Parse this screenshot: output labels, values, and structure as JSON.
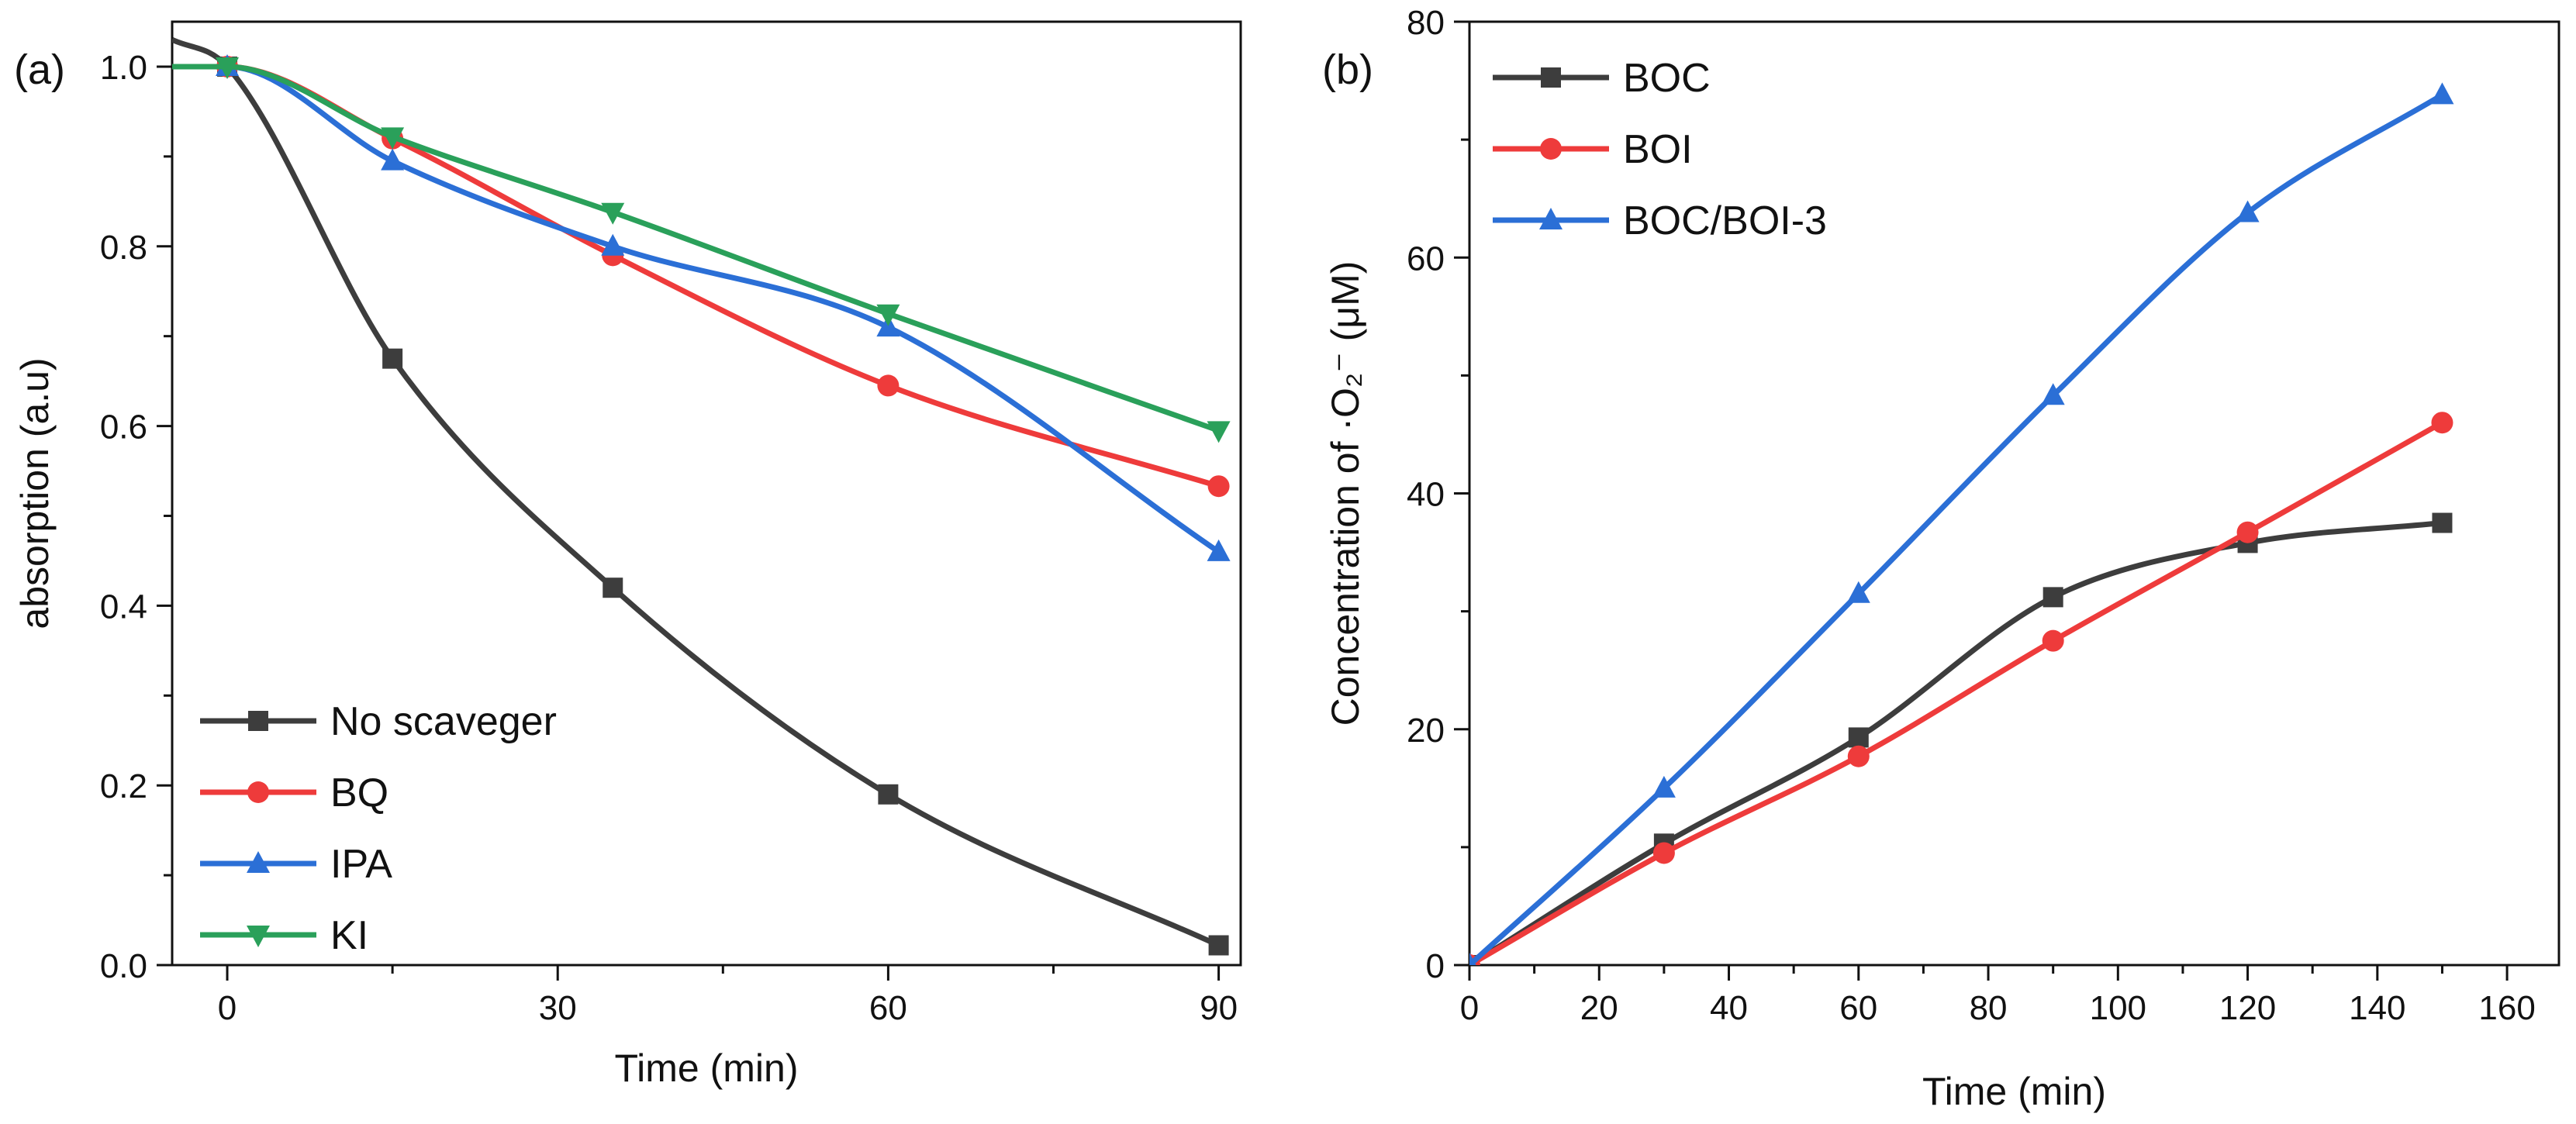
{
  "chart_data": [
    {
      "panel_label": "(a)",
      "type": "line",
      "xlabel": "Time (min)",
      "ylabel": "absorption (a.u)",
      "xlim": [
        -5,
        92
      ],
      "ylim": [
        0,
        1.05
      ],
      "xticks": [
        0,
        30,
        60,
        90
      ],
      "yticks": [
        0.0,
        0.2,
        0.4,
        0.6,
        0.8,
        1.0
      ],
      "xtick_labels": [
        "0",
        "30",
        "60",
        "90"
      ],
      "ytick_labels": [
        "0.0",
        "0.2",
        "0.4",
        "0.6",
        "0.8",
        "1.0"
      ],
      "grid": false,
      "legend_position": "bottom-left",
      "series": [
        {
          "name": "No scaveger",
          "color": "#3d3d3d",
          "marker": "square",
          "x": [
            -5,
            0,
            15,
            35,
            60,
            90
          ],
          "y": [
            1.03,
            1.0,
            0.675,
            0.42,
            0.19,
            0.022
          ],
          "marker_x": [
            0,
            15,
            35,
            60,
            90
          ]
        },
        {
          "name": "BQ",
          "color": "#ee3b3b",
          "marker": "circle",
          "x": [
            -5,
            0,
            15,
            35,
            60,
            90
          ],
          "y": [
            1.0,
            1.0,
            0.92,
            0.79,
            0.645,
            0.533
          ],
          "marker_x": [
            0,
            15,
            35,
            60,
            90
          ]
        },
        {
          "name": "IPA",
          "color": "#2b6fd6",
          "marker": "triangle-up",
          "x": [
            -5,
            0,
            15,
            35,
            60,
            90
          ],
          "y": [
            1.0,
            1.0,
            0.895,
            0.8,
            0.71,
            0.46
          ],
          "marker_x": [
            0,
            15,
            35,
            60,
            90
          ]
        },
        {
          "name": "KI",
          "color": "#2aa05a",
          "marker": "triangle-down",
          "x": [
            -5,
            0,
            15,
            35,
            60,
            90
          ],
          "y": [
            1.0,
            1.0,
            0.922,
            0.838,
            0.725,
            0.595
          ],
          "marker_x": [
            0,
            15,
            35,
            60,
            90
          ]
        }
      ]
    },
    {
      "panel_label": "(b)",
      "type": "line",
      "xlabel": "Time (min)",
      "ylabel": "Concentration of ·O₂⁻ (μM)",
      "xlim": [
        0,
        168
      ],
      "ylim": [
        0,
        80
      ],
      "xticks": [
        0,
        20,
        40,
        60,
        80,
        100,
        120,
        140,
        160
      ],
      "yticks": [
        0,
        20,
        40,
        60,
        80
      ],
      "xtick_labels": [
        "0",
        "20",
        "40",
        "60",
        "80",
        "100",
        "120",
        "140",
        "160"
      ],
      "ytick_labels": [
        "0",
        "20",
        "40",
        "60",
        "80"
      ],
      "grid": false,
      "legend_position": "top-left",
      "series": [
        {
          "name": "BOC",
          "color": "#3d3d3d",
          "marker": "square",
          "x": [
            0,
            30,
            60,
            90,
            120,
            150
          ],
          "y": [
            0,
            10.3,
            19.3,
            31.2,
            35.8,
            37.5
          ],
          "marker_x": [
            0,
            30,
            60,
            90,
            120,
            150
          ]
        },
        {
          "name": "BOI",
          "color": "#ee3b3b",
          "marker": "circle",
          "x": [
            0,
            30,
            60,
            90,
            120,
            150
          ],
          "y": [
            0,
            9.5,
            17.7,
            27.5,
            36.7,
            46.0
          ],
          "marker_x": [
            0,
            30,
            60,
            90,
            120,
            150
          ]
        },
        {
          "name": "BOC/BOI-3",
          "color": "#2b6fd6",
          "marker": "triangle-up",
          "x": [
            0,
            30,
            60,
            90,
            120,
            150
          ],
          "y": [
            0,
            15.0,
            31.5,
            48.3,
            63.8,
            73.8
          ],
          "marker_x": [
            0,
            30,
            60,
            90,
            120,
            150
          ]
        }
      ]
    }
  ]
}
